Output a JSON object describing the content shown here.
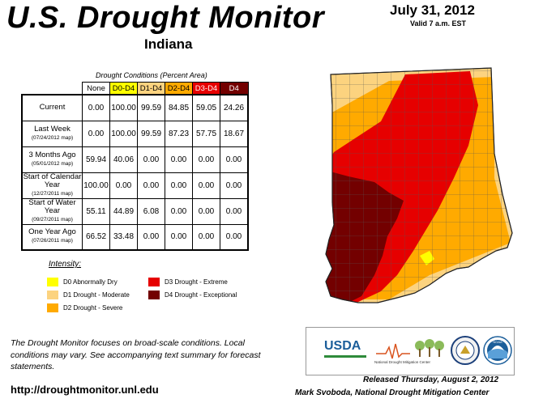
{
  "header": {
    "title": "U.S. Drought Monitor",
    "state": "Indiana",
    "date": "July 31, 2012",
    "valid": "Valid 7 a.m. EST"
  },
  "table": {
    "title": "Drought Conditions (Percent Area)",
    "columns": [
      "None",
      "D0-D4",
      "D1-D4",
      "D2-D4",
      "D3-D4",
      "D4"
    ],
    "column_colors": [
      "#ffffff",
      "#ffff00",
      "#fcd37f",
      "#ffaa00",
      "#e60000",
      "#730000"
    ],
    "rows": [
      {
        "label": "Current",
        "sub": "",
        "values": [
          "0.00",
          "100.00",
          "99.59",
          "84.85",
          "59.05",
          "24.26"
        ]
      },
      {
        "label": "Last Week",
        "sub": "(07/24/2012 map)",
        "values": [
          "0.00",
          "100.00",
          "99.59",
          "87.23",
          "57.75",
          "18.67"
        ]
      },
      {
        "label": "3 Months Ago",
        "sub": "(05/01/2012 map)",
        "values": [
          "59.94",
          "40.06",
          "0.00",
          "0.00",
          "0.00",
          "0.00"
        ]
      },
      {
        "label": "Start of Calendar Year",
        "sub": "(12/27/2011 map)",
        "values": [
          "100.00",
          "0.00",
          "0.00",
          "0.00",
          "0.00",
          "0.00"
        ]
      },
      {
        "label": "Start of Water Year",
        "sub": "(09/27/2011 map)",
        "values": [
          "55.11",
          "44.89",
          "6.08",
          "0.00",
          "0.00",
          "0.00"
        ]
      },
      {
        "label": "One Year Ago",
        "sub": "(07/26/2011 map)",
        "values": [
          "66.52",
          "33.48",
          "0.00",
          "0.00",
          "0.00",
          "0.00"
        ]
      }
    ]
  },
  "legend": {
    "title": "Intensity:",
    "items": [
      {
        "label": "D0 Abnormally Dry",
        "color": "#ffff00"
      },
      {
        "label": "D1 Drought - Moderate",
        "color": "#fcd37f"
      },
      {
        "label": "D2 Drought - Severe",
        "color": "#ffaa00"
      },
      {
        "label": "D3 Drought - Extreme",
        "color": "#e60000"
      },
      {
        "label": "D4 Drought - Exceptional",
        "color": "#730000"
      }
    ]
  },
  "footnote": "The Drought Monitor focuses on broad-scale conditions. Local conditions may vary. See accompanying text summary for forecast statements.",
  "url": "http://droughtmonitor.unl.edu",
  "released": "Released Thursday, August 2, 2012",
  "author": "Mark Svoboda, National Drought Mitigation Center",
  "logos": {
    "usda": "USDA",
    "ndmc": "National Drought Mitigation Center",
    "doc": "",
    "noaa": "NOAA"
  }
}
